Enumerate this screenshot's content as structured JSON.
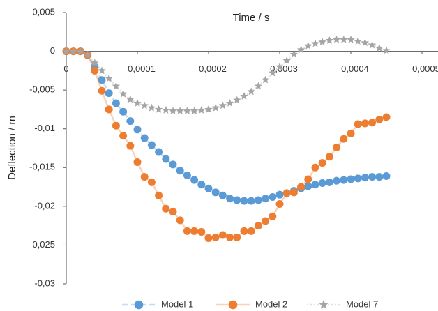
{
  "chart_data": {
    "type": "scatter",
    "x_label": "Time / s",
    "y_label": "Deflection / m",
    "x": [
      0,
      1e-05,
      2e-05,
      3e-05,
      4e-05,
      5e-05,
      6e-05,
      7e-05,
      8e-05,
      9e-05,
      0.0001,
      0.00011,
      0.00012,
      0.00013,
      0.00014,
      0.00015,
      0.00016,
      0.00017,
      0.00018,
      0.00019,
      0.0002,
      0.00021,
      0.00022,
      0.00023,
      0.00024,
      0.00025,
      0.00026,
      0.00027,
      0.00028,
      0.00029,
      0.0003,
      0.00031,
      0.00032,
      0.00033,
      0.00034,
      0.00035,
      0.00036,
      0.00037,
      0.00038,
      0.00039,
      0.0004,
      0.00041,
      0.00042,
      0.00043,
      0.00044,
      0.00045
    ],
    "series": [
      {
        "name": "Model 1",
        "color": "#5b9bd5",
        "marker": "circle",
        "line_style": "dashed",
        "values": [
          0,
          0,
          0,
          -0.0005,
          -0.002,
          -0.0037,
          -0.0054,
          -0.0067,
          -0.0078,
          -0.009,
          -0.0101,
          -0.0112,
          -0.0121,
          -0.013,
          -0.0139,
          -0.0146,
          -0.0154,
          -0.016,
          -0.0166,
          -0.0172,
          -0.0177,
          -0.0182,
          -0.0186,
          -0.019,
          -0.0192,
          -0.0193,
          -0.0193,
          -0.0192,
          -0.019,
          -0.0188,
          -0.0185,
          -0.0183,
          -0.018,
          -0.0177,
          -0.0174,
          -0.0172,
          -0.017,
          -0.0169,
          -0.0167,
          -0.0166,
          -0.0165,
          -0.0164,
          -0.0163,
          -0.0162,
          -0.0162,
          -0.0161
        ]
      },
      {
        "name": "Model 2",
        "color": "#ed7d31",
        "marker": "circle",
        "line_style": "solid",
        "values": [
          0,
          0,
          0,
          -0.0005,
          -0.0025,
          -0.0051,
          -0.0075,
          -0.0096,
          -0.0109,
          -0.0122,
          -0.0143,
          -0.0162,
          -0.0169,
          -0.0186,
          -0.0203,
          -0.0207,
          -0.0218,
          -0.0232,
          -0.0232,
          -0.0233,
          -0.0241,
          -0.024,
          -0.0237,
          -0.024,
          -0.024,
          -0.0232,
          -0.0232,
          -0.0225,
          -0.0219,
          -0.0213,
          -0.0197,
          -0.0183,
          -0.0182,
          -0.0175,
          -0.0165,
          -0.015,
          -0.0144,
          -0.0136,
          -0.0124,
          -0.0113,
          -0.0106,
          -0.0094,
          -0.0093,
          -0.0092,
          -0.0088,
          -0.0085
        ]
      },
      {
        "name": "Model 7",
        "color": "#a5a5a5",
        "marker": "star",
        "line_style": "dotted",
        "values": [
          0,
          0,
          0,
          -0.0005,
          -0.0015,
          -0.0025,
          -0.0035,
          -0.0045,
          -0.0055,
          -0.0062,
          -0.0067,
          -0.007,
          -0.0073,
          -0.0075,
          -0.0076,
          -0.0077,
          -0.0077,
          -0.0077,
          -0.0077,
          -0.0076,
          -0.0075,
          -0.0073,
          -0.007,
          -0.0067,
          -0.0063,
          -0.0058,
          -0.0052,
          -0.0045,
          -0.0037,
          -0.0028,
          -0.002,
          -0.0012,
          -0.0004,
          0.0002,
          0.0007,
          0.001,
          0.0012,
          0.0014,
          0.0015,
          0.0015,
          0.0015,
          0.0013,
          0.0011,
          0.0008,
          0.0004,
          0.0001
        ]
      }
    ],
    "xlim": [
      0,
      0.0005
    ],
    "xticks": [
      0,
      {
        "value": 0.0001,
        "label": "0,0001"
      },
      {
        "value": 0.0002,
        "label": "0,0002"
      },
      {
        "value": 0.0003,
        "label": "0,0003"
      },
      {
        "value": 0.0004,
        "label": "0,0004"
      },
      {
        "value": 0.0005,
        "label": "0,0005"
      }
    ],
    "ylim": [
      -0.03,
      0.005
    ],
    "yticks": [
      {
        "value": 0.005,
        "label": "0,005"
      },
      0,
      {
        "value": -0.005,
        "label": "-0,005"
      },
      {
        "value": -0.01,
        "label": "-0,01"
      },
      {
        "value": -0.015,
        "label": "-0,015"
      },
      {
        "value": -0.02,
        "label": "-0,02"
      },
      {
        "value": -0.025,
        "label": "-0,025"
      },
      {
        "value": -0.03,
        "label": "-0,03"
      }
    ],
    "grid": false,
    "legend": "bottom"
  }
}
